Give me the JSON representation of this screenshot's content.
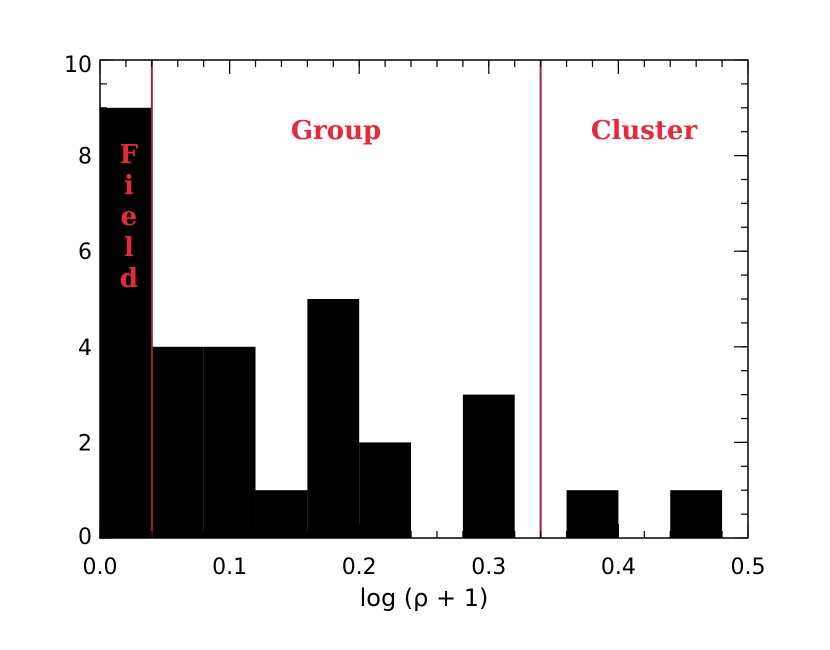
{
  "chart_data": {
    "type": "bar",
    "xlabel": "log (ρ + 1)",
    "ylabel": "",
    "xlim": [
      0.0,
      0.5
    ],
    "ylim": [
      0,
      10
    ],
    "x_ticks": [
      "0.0",
      "0.1",
      "0.2",
      "0.3",
      "0.4",
      "0.5"
    ],
    "y_ticks": [
      "0",
      "2",
      "4",
      "6",
      "8",
      "10"
    ],
    "bin_width": 0.04,
    "bins": [
      {
        "x0": 0.0,
        "x1": 0.04,
        "value": 9
      },
      {
        "x0": 0.04,
        "x1": 0.08,
        "value": 4
      },
      {
        "x0": 0.08,
        "x1": 0.12,
        "value": 4
      },
      {
        "x0": 0.12,
        "x1": 0.16,
        "value": 1
      },
      {
        "x0": 0.16,
        "x1": 0.2,
        "value": 5
      },
      {
        "x0": 0.2,
        "x1": 0.24,
        "value": 2
      },
      {
        "x0": 0.24,
        "x1": 0.28,
        "value": 0
      },
      {
        "x0": 0.28,
        "x1": 0.32,
        "value": 3
      },
      {
        "x0": 0.32,
        "x1": 0.36,
        "value": 0
      },
      {
        "x0": 0.36,
        "x1": 0.4,
        "value": 1
      },
      {
        "x0": 0.4,
        "x1": 0.44,
        "value": 0
      },
      {
        "x0": 0.44,
        "x1": 0.48,
        "value": 1
      }
    ],
    "bar_color": "#000000",
    "boundaries": [
      {
        "x": 0.04,
        "color": "#a0213a"
      },
      {
        "x": 0.34,
        "color": "#a0213a"
      }
    ],
    "regions": [
      {
        "label": "Field",
        "color": "#e8283c",
        "orientation": "vertical"
      },
      {
        "label": "Group",
        "color": "#e8283c",
        "orientation": "horizontal"
      },
      {
        "label": "Cluster",
        "color": "#e8283c",
        "orientation": "horizontal"
      }
    ]
  }
}
